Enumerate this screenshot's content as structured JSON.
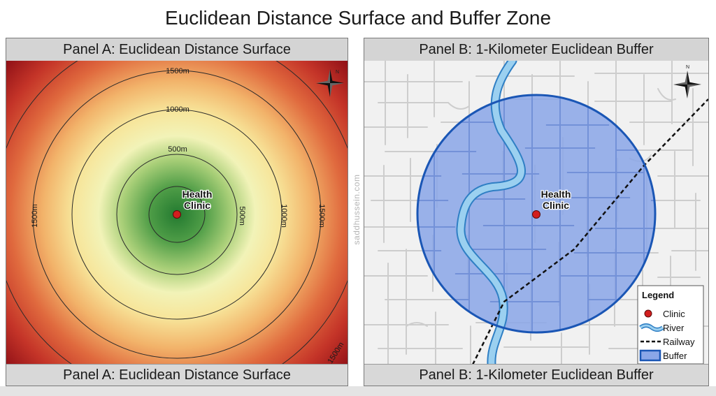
{
  "title": "Euclidean Distance Surface and Buffer Zone",
  "watermark": "saddhussein.com",
  "panel_a": {
    "header": "Panel A: Euclidean Distance Surface",
    "footer": "Panel A: Euclidean Distance Surface",
    "clinic_label_line1": "Health",
    "clinic_label_line2": "Clinic",
    "contour_labels": {
      "top_1500": "1500m",
      "top_1000": "1000m",
      "top_500": "500m",
      "right_500": "500m",
      "right_1000": "1000m",
      "right_1500": "1500m",
      "left_1500": "1500m",
      "bottom_right_1500": "1500m"
    },
    "north_label": "N",
    "colors": {
      "near": "#2e8b3e",
      "mid": "#f3f1b0",
      "far": "#b01a1a",
      "clinic": "#cc1a1a"
    }
  },
  "panel_b": {
    "header": "Panel B: 1-Kilometer Euclidean Buffer",
    "footer": "Panel B: 1-Kilometer Euclidean Buffer",
    "clinic_label_line1": "Health",
    "clinic_label_line2": "Clinic",
    "north_label": "N",
    "legend": {
      "title": "Legend",
      "clinic": "Clinic",
      "river": "River",
      "railway": "Railway",
      "buffer": "Buffer"
    },
    "colors": {
      "buffer_fill": "#7f9fe3",
      "buffer_edge": "#1a5ab8",
      "river": "#8ec6ec",
      "clinic": "#cc1a1a"
    }
  }
}
